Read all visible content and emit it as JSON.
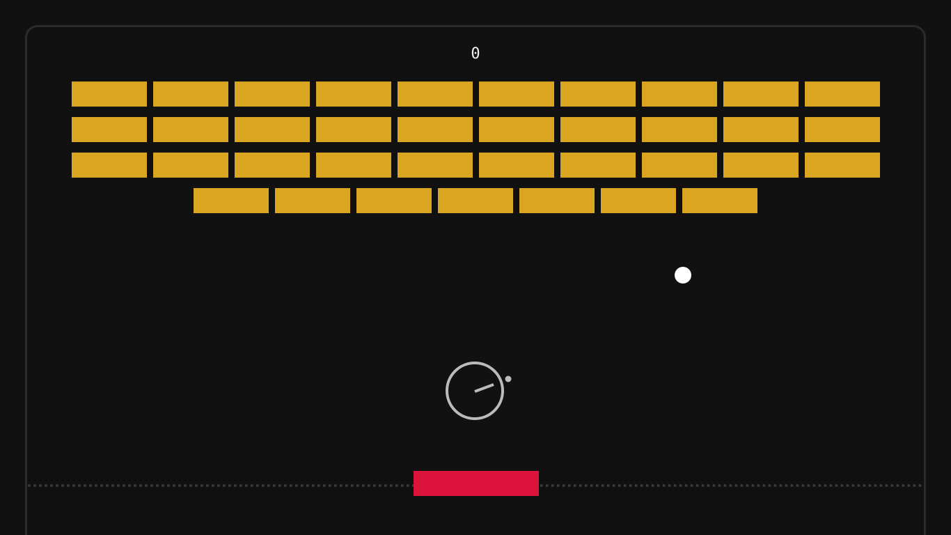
{
  "game": {
    "score": "0",
    "colors": {
      "background": "#111111",
      "frame_border": "#2b2b2b",
      "brick": "#daa520",
      "paddle": "#dc143c",
      "ball": "#ffffff",
      "timer_icon": "#bbbbbb",
      "floor_line": "#3a3a3a"
    },
    "bricks": {
      "rows": [
        10,
        10,
        10,
        7
      ]
    },
    "icons": {
      "center_hint": "timer-icon"
    }
  }
}
